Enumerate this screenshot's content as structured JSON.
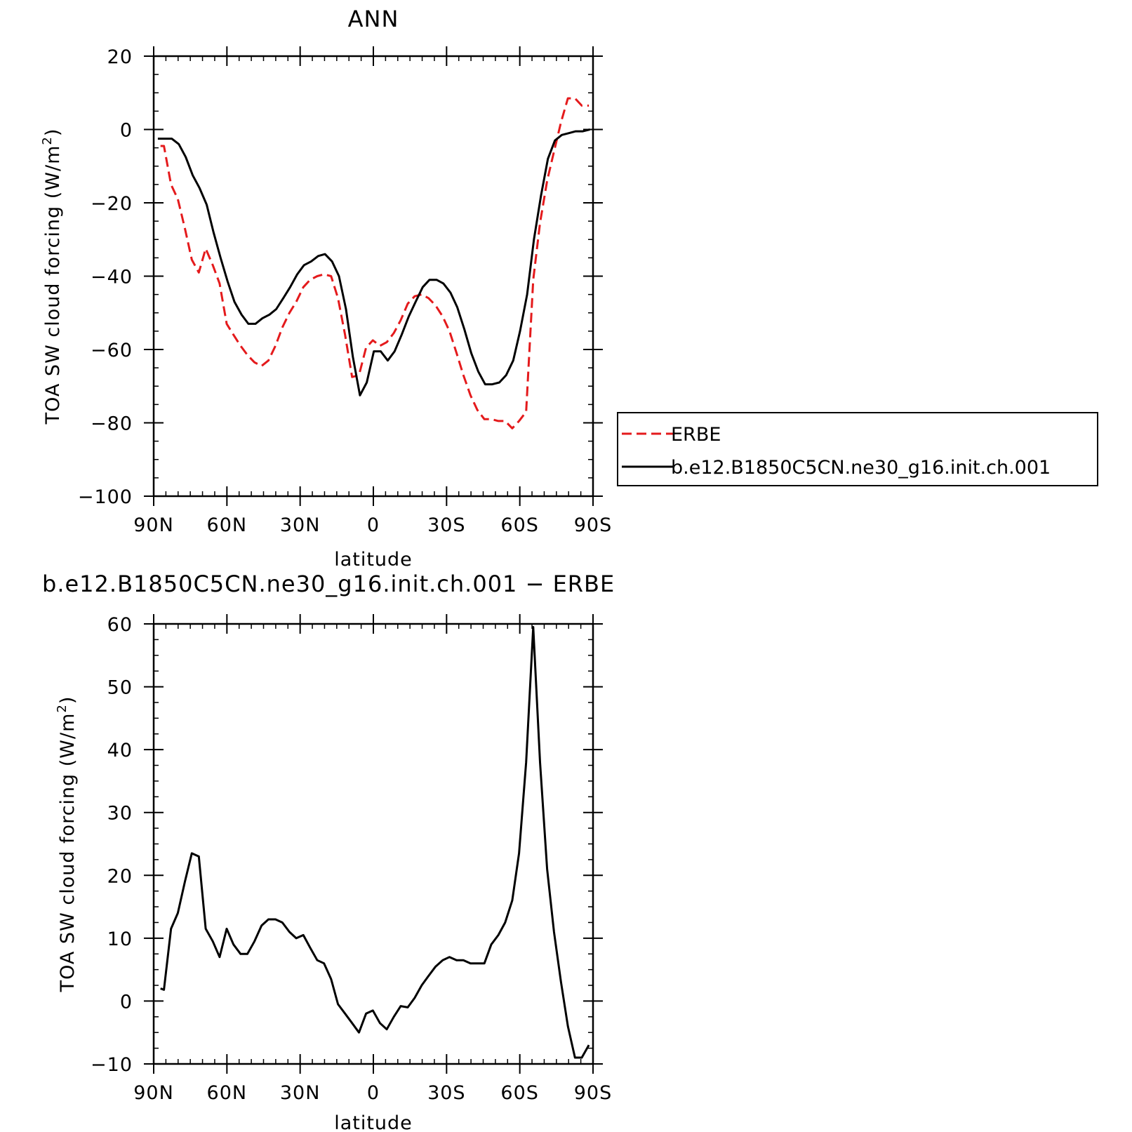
{
  "chart_data": [
    {
      "type": "line",
      "title": "ANN",
      "xlabel": "latitude",
      "ylabel": "TOA SW cloud forcing (W/m",
      "ylabel_sup": "2",
      "ylabel_close": ")",
      "xlim": [
        90,
        -90
      ],
      "ylim": [
        -100,
        20
      ],
      "xticks": [
        90,
        60,
        30,
        0,
        -30,
        -60,
        -90
      ],
      "xtick_labels": [
        "90N",
        "60N",
        "30N",
        "0",
        "30S",
        "60S",
        "90S"
      ],
      "yticks": [
        20,
        0,
        -20,
        -40,
        -60,
        -80,
        -100
      ],
      "ytick_labels": [
        "20",
        "0",
        "−20",
        "−40",
        "−60",
        "−80",
        "−100"
      ],
      "legend": "right",
      "series": [
        {
          "name": "ERBE",
          "color": "#e41a1c",
          "dash": "dashed",
          "x": [
            87.2,
            85.8,
            82.9,
            80.1,
            77.2,
            74.4,
            71.5,
            68.7,
            65.8,
            63.0,
            60.1,
            57.3,
            54.4,
            51.6,
            48.7,
            45.8,
            43.0,
            40.1,
            37.3,
            34.4,
            31.6,
            28.7,
            25.9,
            23.0,
            20.2,
            17.3,
            14.5,
            11.6,
            8.7,
            5.9,
            3.0,
            0.2,
            -2.7,
            -5.5,
            -8.4,
            -11.2,
            -14.1,
            -16.9,
            -19.8,
            -22.6,
            -25.5,
            -28.4,
            -31.2,
            -34.1,
            -36.9,
            -39.8,
            -42.6,
            -45.5,
            -48.3,
            -51.2,
            -54.0,
            -56.9,
            -59.7,
            -62.6,
            -65.5,
            -68.3,
            -71.2,
            -74.0,
            -76.9,
            -79.7,
            -82.6,
            -85.4,
            -88.3
          ],
          "y": [
            -4.5,
            -4.5,
            -15,
            -19,
            -27,
            -35.5,
            -39,
            -32.5,
            -37,
            -42,
            -53,
            -56,
            -59,
            -61.5,
            -63.5,
            -64.5,
            -63,
            -59,
            -54,
            -50,
            -47,
            -43,
            -41,
            -40,
            -39.5,
            -40,
            -46,
            -56,
            -67.5,
            -67,
            -59.5,
            -57.5,
            -59,
            -58,
            -55.5,
            -52,
            -47.5,
            -45.5,
            -45,
            -46,
            -48,
            -51,
            -55,
            -61,
            -67,
            -72.5,
            -76.5,
            -79,
            -79,
            -79.5,
            -79.5,
            -81.5,
            -79.5,
            -77,
            -41,
            -25.5,
            -14,
            -6,
            2,
            8.5,
            8.5,
            6.5,
            6.5
          ]
        },
        {
          "name": "b.e12.B1850C5CN.ne30_g16.init.ch.001",
          "color": "#000000",
          "dash": "solid",
          "x": [
            88.3,
            85.4,
            82.6,
            79.7,
            76.9,
            74.0,
            71.2,
            68.3,
            65.5,
            62.6,
            59.7,
            56.9,
            54.0,
            51.2,
            48.3,
            45.5,
            42.6,
            39.8,
            36.9,
            34.1,
            31.2,
            28.4,
            25.5,
            22.6,
            19.8,
            16.9,
            14.1,
            11.2,
            8.4,
            5.5,
            2.7,
            -0.2,
            -3.0,
            -5.9,
            -8.7,
            -11.6,
            -14.5,
            -17.3,
            -20.2,
            -23.0,
            -25.9,
            -28.7,
            -31.6,
            -34.4,
            -37.3,
            -40.1,
            -43.0,
            -45.8,
            -48.7,
            -51.6,
            -54.4,
            -57.3,
            -60.1,
            -63.0,
            -65.8,
            -68.7,
            -71.5,
            -74.4,
            -77.2,
            -80.1,
            -82.9,
            -85.8,
            -88.7
          ],
          "y": [
            -2.5,
            -2.5,
            -2.5,
            -4,
            -7.5,
            -12.5,
            -16,
            -20.5,
            -28,
            -35,
            -41.5,
            -47,
            -50.5,
            -53,
            -53,
            -51.5,
            -50.5,
            -49,
            -46,
            -43,
            -39.5,
            -37,
            -36,
            -34.5,
            -34,
            -36,
            -40,
            -49,
            -62,
            -72.5,
            -69,
            -60.5,
            -60.5,
            -63,
            -60.5,
            -56,
            -51,
            -47,
            -43,
            -41,
            -41,
            -42,
            -44.5,
            -48.5,
            -54.5,
            -61,
            -66,
            -69.5,
            -69.5,
            -69,
            -67,
            -63,
            -55,
            -45,
            -30,
            -18,
            -8,
            -3,
            -1.5,
            -1,
            -0.5,
            -0.5,
            0
          ]
        }
      ]
    },
    {
      "type": "line",
      "title": "b.e12.B1850C5CN.ne30_g16.init.ch.001 − ERBE",
      "xlabel": "latitude",
      "ylabel": "TOA SW cloud forcing (W/m",
      "ylabel_sup": "2",
      "ylabel_close": ")",
      "xlim": [
        90,
        -90
      ],
      "ylim": [
        -10,
        60
      ],
      "xticks": [
        90,
        60,
        30,
        0,
        -30,
        -60,
        -90
      ],
      "xtick_labels": [
        "90N",
        "60N",
        "30N",
        "0",
        "30S",
        "60S",
        "90S"
      ],
      "yticks": [
        60,
        50,
        40,
        30,
        20,
        10,
        0,
        -10
      ],
      "ytick_labels": [
        "60",
        "50",
        "40",
        "30",
        "20",
        "10",
        "0",
        "−10"
      ],
      "series": [
        {
          "color": "#000000",
          "dash": "solid",
          "x": [
            87.2,
            85.8,
            82.9,
            80.1,
            77.2,
            74.4,
            71.5,
            68.7,
            65.8,
            63.0,
            60.1,
            57.3,
            54.4,
            51.6,
            48.7,
            45.8,
            43.0,
            40.1,
            37.3,
            34.4,
            31.6,
            28.7,
            25.9,
            23.0,
            20.2,
            17.3,
            14.5,
            11.6,
            8.7,
            5.9,
            3.0,
            0.2,
            -2.7,
            -5.5,
            -8.4,
            -11.2,
            -14.1,
            -16.9,
            -19.8,
            -22.6,
            -25.5,
            -28.4,
            -31.2,
            -34.1,
            -36.9,
            -39.8,
            -42.6,
            -45.5,
            -48.3,
            -51.2,
            -54.0,
            -56.9,
            -59.7,
            -62.6,
            -65.5,
            -68.3,
            -71.2,
            -74.0,
            -76.9,
            -79.7,
            -82.6,
            -85.4,
            -88.3
          ],
          "y": [
            2.0,
            1.8,
            11.5,
            14.0,
            19.0,
            23.5,
            23.0,
            11.5,
            9.5,
            7.0,
            11.5,
            9.0,
            7.5,
            7.5,
            9.5,
            12.0,
            13.0,
            13.0,
            12.5,
            11.0,
            10.0,
            10.5,
            8.5,
            6.5,
            6.0,
            3.5,
            -0.5,
            -2.0,
            -3.5,
            -5.0,
            -2.0,
            -1.5,
            -3.5,
            -4.5,
            -2.5,
            -0.8,
            -1.0,
            0.5,
            2.5,
            4.0,
            5.5,
            6.5,
            7.0,
            6.5,
            6.5,
            6.0,
            6.0,
            6.0,
            9.0,
            10.5,
            12.5,
            16.0,
            23.5,
            38.0,
            59.5,
            38.0,
            21.0,
            11.0,
            3.0,
            -4.0,
            -9.0,
            -9.0,
            -7.0
          ]
        }
      ]
    }
  ]
}
